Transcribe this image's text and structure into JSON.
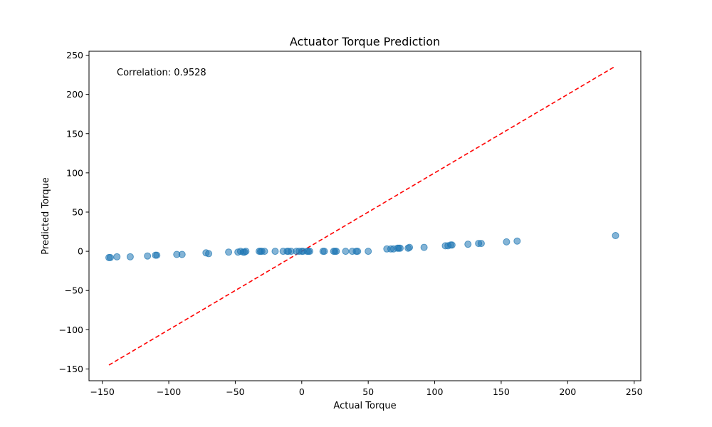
{
  "chart_data": {
    "type": "scatter",
    "title": "Actuator Torque Prediction",
    "xlabel": "Actual Torque",
    "ylabel": "Predicted Torque",
    "xlim": [
      -160,
      255
    ],
    "ylim": [
      -165,
      255
    ],
    "xticks": [
      -150,
      -100,
      -50,
      0,
      50,
      100,
      150,
      200,
      250
    ],
    "yticks": [
      -150,
      -100,
      -50,
      0,
      50,
      100,
      150,
      200,
      250
    ],
    "grid": false,
    "annotation": "Correlation: 0.9528",
    "colors": {
      "points": "#1f77b4",
      "reference_line": "#ff0000"
    },
    "reference_line": {
      "style": "dashed",
      "x": [
        -145,
        236
      ],
      "y": [
        -145,
        236
      ]
    },
    "points": {
      "x": [
        -145,
        -144,
        -139,
        -129,
        -116,
        -110,
        -109,
        -94,
        -90,
        -72,
        -70,
        -55,
        -48,
        -46,
        -44,
        -43,
        -42,
        -32,
        -31,
        -30,
        -28,
        -20,
        -14,
        -11,
        -10,
        -8,
        -4,
        -2,
        0,
        1,
        4,
        5,
        6,
        16,
        17,
        24,
        25,
        26,
        33,
        38,
        41,
        42,
        50,
        64,
        67,
        69,
        72,
        73,
        74,
        80,
        81,
        92,
        108,
        110,
        112,
        113,
        125,
        133,
        135,
        154,
        162,
        236
      ],
      "y": [
        -8,
        -8,
        -7,
        -7,
        -6,
        -5,
        -5,
        -4,
        -4,
        -2,
        -3,
        -1,
        -1,
        0,
        -1,
        -1,
        0,
        0,
        0,
        0,
        0,
        0,
        0,
        0,
        0,
        0,
        0,
        0,
        0,
        0,
        0,
        0,
        0,
        0,
        0,
        0,
        0,
        0,
        0,
        0,
        0,
        0,
        0,
        3,
        3,
        3,
        4,
        4,
        4,
        4,
        5,
        5,
        7,
        7,
        8,
        8,
        9,
        10,
        10,
        12,
        13,
        20
      ]
    }
  }
}
